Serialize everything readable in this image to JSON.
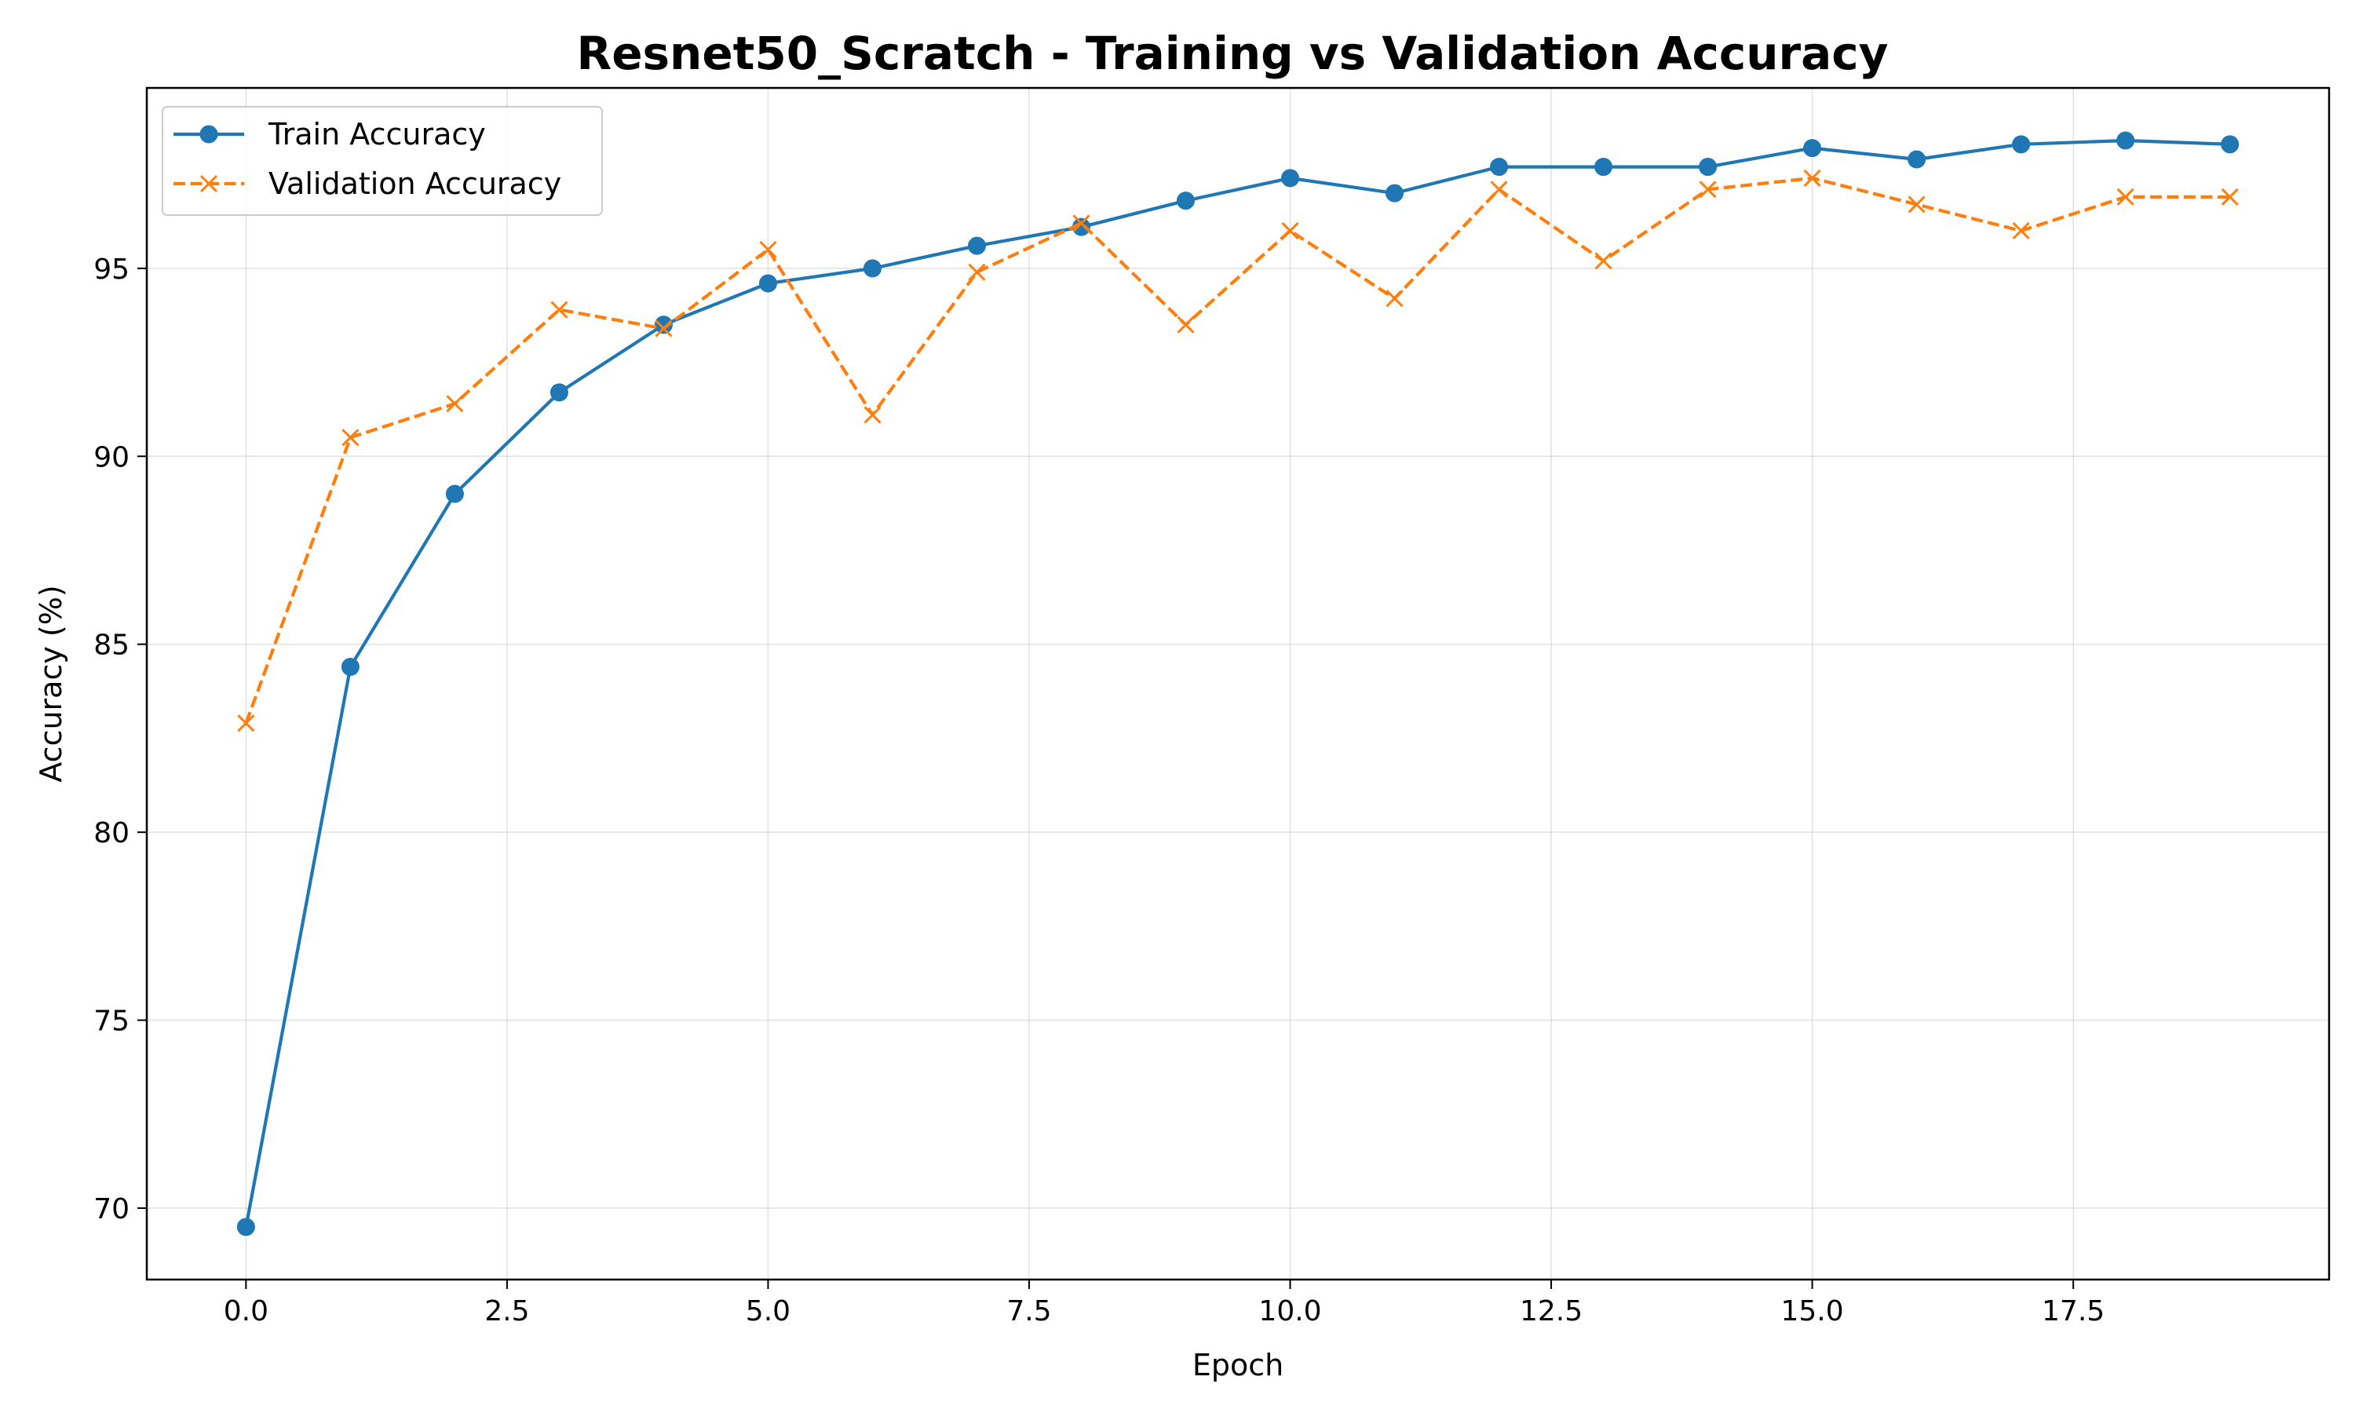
{
  "chart_data": {
    "type": "line",
    "title": "Resnet50_Scratch - Training vs Validation Accuracy",
    "xlabel": "Epoch",
    "ylabel": "Accuracy (%)",
    "xlim": [
      -0.95,
      19.95
    ],
    "ylim": [
      68.1,
      99.8
    ],
    "xticks": [
      0.0,
      2.5,
      5.0,
      7.5,
      10.0,
      12.5,
      15.0,
      17.5
    ],
    "xtick_labels": [
      "0.0",
      "2.5",
      "5.0",
      "7.5",
      "10.0",
      "12.5",
      "15.0",
      "17.5"
    ],
    "yticks": [
      70,
      75,
      80,
      85,
      90,
      95
    ],
    "ytick_labels": [
      "70",
      "75",
      "80",
      "85",
      "90",
      "95"
    ],
    "grid": true,
    "legend_position": "top-left",
    "x": [
      0,
      1,
      2,
      3,
      4,
      5,
      6,
      7,
      8,
      9,
      10,
      11,
      12,
      13,
      14,
      15,
      16,
      17,
      18,
      19
    ],
    "series": [
      {
        "name": "Train Accuracy",
        "color": "#1f77b4",
        "line_style": "solid",
        "marker": "circle",
        "values": [
          69.5,
          84.4,
          89.0,
          91.7,
          93.5,
          94.6,
          95.0,
          95.6,
          96.1,
          96.8,
          97.4,
          97.0,
          97.7,
          97.7,
          97.7,
          98.2,
          97.9,
          98.3,
          98.4,
          98.3
        ]
      },
      {
        "name": "Validation Accuracy",
        "color": "#ff7f0e",
        "line_style": "dashed",
        "marker": "x",
        "values": [
          82.9,
          90.5,
          91.4,
          93.9,
          93.4,
          95.5,
          91.1,
          94.9,
          96.2,
          93.5,
          96.0,
          94.2,
          97.1,
          95.2,
          97.1,
          97.4,
          96.7,
          96.0,
          96.9,
          96.9
        ]
      }
    ]
  }
}
